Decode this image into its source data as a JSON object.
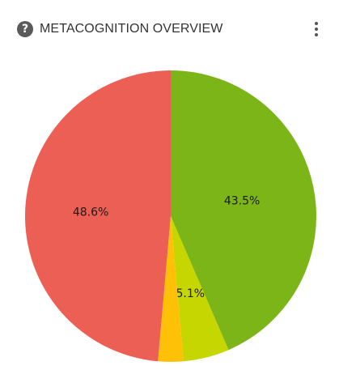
{
  "header": {
    "title": "METACOGNITION OVERVIEW",
    "help_icon": "question-circle-icon",
    "menu_icon": "more-vertical-icon"
  },
  "chart_data": {
    "type": "pie",
    "title": "METACOGNITION OVERVIEW",
    "start_angle_deg": 0,
    "direction": "clockwise",
    "slices": [
      {
        "value": 43.5,
        "label": "43.5%",
        "color": "#7cb518"
      },
      {
        "value": 5.1,
        "label": "5.1%",
        "color": "#c5d600"
      },
      {
        "value": 2.8,
        "label": "",
        "color": "#ffc107"
      },
      {
        "value": 48.6,
        "label": "48.6%",
        "color": "#ec5f55"
      }
    ]
  }
}
